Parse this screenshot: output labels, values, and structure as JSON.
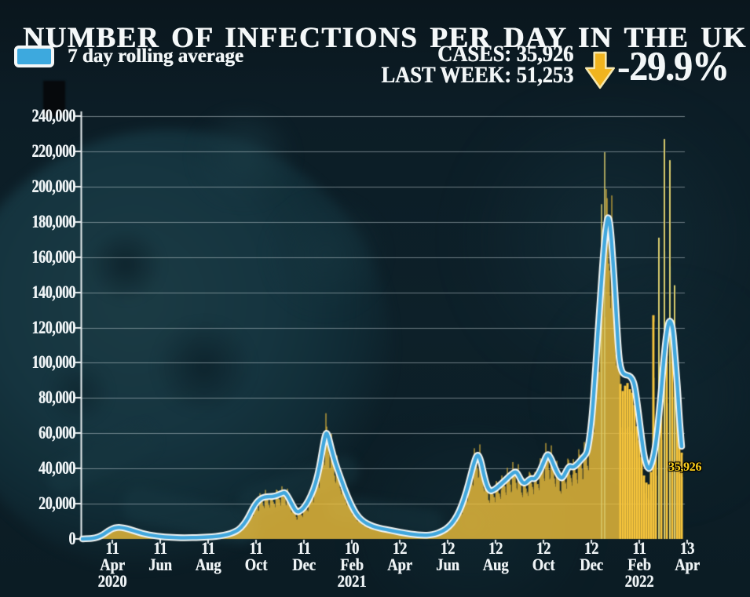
{
  "header": {
    "title": "NUMBER OF INFECTIONS PER DAY IN THE UK"
  },
  "legend": {
    "label": "7 day rolling average",
    "swatch_color": "#3da9de"
  },
  "stats": {
    "cases_label": "CASES:",
    "cases_value": "35,926",
    "cases_line": "CASES: 35,926",
    "last_week_label": "LAST WEEK:",
    "last_week_value": "51,253",
    "last_week_line": "LAST WEEK: 51,253",
    "change": "-29.9%",
    "arrow_color": "#f0b41f"
  },
  "chart_data": {
    "type": "bar+line",
    "series_name": "7 day rolling average",
    "ylim": [
      0,
      240000
    ],
    "grid": true,
    "y_ticks": [
      {
        "value": 0,
        "label": "0"
      },
      {
        "value": 20000,
        "label": "20,000"
      },
      {
        "value": 40000,
        "label": "40,000"
      },
      {
        "value": 60000,
        "label": "60,000"
      },
      {
        "value": 80000,
        "label": "80,000"
      },
      {
        "value": 100000,
        "label": "100,000"
      },
      {
        "value": 120000,
        "label": "120,000"
      },
      {
        "value": 140000,
        "label": "140,000"
      },
      {
        "value": 160000,
        "label": "160,000"
      },
      {
        "value": 180000,
        "label": "180,000"
      },
      {
        "value": 200000,
        "label": "200,000"
      },
      {
        "value": 220000,
        "label": "220,000"
      },
      {
        "value": 240000,
        "label": "240,000"
      }
    ],
    "x_ticks": [
      {
        "day": 38,
        "lines": [
          "11",
          "Apr",
          "2020"
        ]
      },
      {
        "day": 99,
        "lines": [
          "11",
          "Jun"
        ]
      },
      {
        "day": 160,
        "lines": [
          "11",
          "Aug"
        ]
      },
      {
        "day": 221,
        "lines": [
          "11",
          "Oct"
        ]
      },
      {
        "day": 282,
        "lines": [
          "11",
          "Dec"
        ]
      },
      {
        "day": 343,
        "lines": [
          "10",
          "Feb",
          "2021"
        ]
      },
      {
        "day": 404,
        "lines": [
          "12",
          "Apr"
        ]
      },
      {
        "day": 465,
        "lines": [
          "12",
          "Jun"
        ]
      },
      {
        "day": 526,
        "lines": [
          "12",
          "Aug"
        ]
      },
      {
        "day": 587,
        "lines": [
          "12",
          "Oct"
        ]
      },
      {
        "day": 648,
        "lines": [
          "12",
          "Dec"
        ]
      },
      {
        "day": 709,
        "lines": [
          "11",
          "Feb",
          "2022"
        ]
      },
      {
        "day": 770,
        "lines": [
          "13",
          "Apr"
        ]
      }
    ],
    "line_points": [
      [
        0,
        50
      ],
      [
        8,
        150
      ],
      [
        16,
        500
      ],
      [
        24,
        1800
      ],
      [
        30,
        3600
      ],
      [
        36,
        5400
      ],
      [
        41,
        6300
      ],
      [
        47,
        6600
      ],
      [
        53,
        6200
      ],
      [
        60,
        5400
      ],
      [
        68,
        4300
      ],
      [
        76,
        3200
      ],
      [
        85,
        2300
      ],
      [
        95,
        1600
      ],
      [
        105,
        1100
      ],
      [
        115,
        850
      ],
      [
        125,
        700
      ],
      [
        135,
        700
      ],
      [
        145,
        800
      ],
      [
        155,
        950
      ],
      [
        165,
        1200
      ],
      [
        175,
        1700
      ],
      [
        185,
        2600
      ],
      [
        192,
        3600
      ],
      [
        199,
        5200
      ],
      [
        205,
        8000
      ],
      [
        211,
        12000
      ],
      [
        217,
        17500
      ],
      [
        223,
        21500
      ],
      [
        229,
        23500
      ],
      [
        235,
        24000
      ],
      [
        241,
        24000
      ],
      [
        247,
        24500
      ],
      [
        253,
        25800
      ],
      [
        258,
        26500
      ],
      [
        263,
        23000
      ],
      [
        268,
        18500
      ],
      [
        273,
        15000
      ],
      [
        279,
        16200
      ],
      [
        285,
        19500
      ],
      [
        291,
        24500
      ],
      [
        297,
        31500
      ],
      [
        302,
        41000
      ],
      [
        306,
        52000
      ],
      [
        310,
        61000
      ],
      [
        313,
        58500
      ],
      [
        317,
        51000
      ],
      [
        322,
        43000
      ],
      [
        328,
        35500
      ],
      [
        334,
        28000
      ],
      [
        340,
        21500
      ],
      [
        346,
        16000
      ],
      [
        352,
        12200
      ],
      [
        359,
        9500
      ],
      [
        366,
        7800
      ],
      [
        374,
        6600
      ],
      [
        382,
        5800
      ],
      [
        391,
        5000
      ],
      [
        400,
        4200
      ],
      [
        409,
        3400
      ],
      [
        418,
        2800
      ],
      [
        427,
        2300
      ],
      [
        435,
        2100
      ],
      [
        442,
        2200
      ],
      [
        449,
        2800
      ],
      [
        456,
        3900
      ],
      [
        463,
        5600
      ],
      [
        470,
        8500
      ],
      [
        477,
        13000
      ],
      [
        483,
        19000
      ],
      [
        489,
        27000
      ],
      [
        494,
        35500
      ],
      [
        499,
        44000
      ],
      [
        503,
        48500
      ],
      [
        507,
        45000
      ],
      [
        511,
        36500
      ],
      [
        515,
        30000
      ],
      [
        519,
        27000
      ],
      [
        524,
        27800
      ],
      [
        529,
        29500
      ],
      [
        535,
        32000
      ],
      [
        541,
        34500
      ],
      [
        547,
        37000
      ],
      [
        552,
        38500
      ],
      [
        556,
        35500
      ],
      [
        560,
        32000
      ],
      [
        564,
        31500
      ],
      [
        568,
        33500
      ],
      [
        572,
        34500
      ],
      [
        576,
        34000
      ],
      [
        580,
        36500
      ],
      [
        584,
        40000
      ],
      [
        588,
        44500
      ],
      [
        592,
        48500
      ],
      [
        596,
        46500
      ],
      [
        601,
        41000
      ],
      [
        606,
        36000
      ],
      [
        611,
        34000
      ],
      [
        616,
        38500
      ],
      [
        620,
        41500
      ],
      [
        625,
        40500
      ],
      [
        630,
        42500
      ],
      [
        635,
        45000
      ],
      [
        638,
        46500
      ],
      [
        641,
        48000
      ],
      [
        643,
        50000
      ],
      [
        646,
        58000
      ],
      [
        649,
        70000
      ],
      [
        652,
        88000
      ],
      [
        655,
        108000
      ],
      [
        658,
        128000
      ],
      [
        661,
        147000
      ],
      [
        663,
        160000
      ],
      [
        665,
        170000
      ],
      [
        667,
        178000
      ],
      [
        669,
        183000
      ],
      [
        671,
        181000
      ],
      [
        673,
        173000
      ],
      [
        675,
        161000
      ],
      [
        677,
        148000
      ],
      [
        679,
        133000
      ],
      [
        681,
        117000
      ],
      [
        683,
        104000
      ],
      [
        685,
        97500
      ],
      [
        688,
        94000
      ],
      [
        692,
        93000
      ],
      [
        696,
        92800
      ],
      [
        700,
        91000
      ],
      [
        703,
        87500
      ],
      [
        706,
        78500
      ],
      [
        709,
        68000
      ],
      [
        712,
        57000
      ],
      [
        715,
        47500
      ],
      [
        718,
        42000
      ],
      [
        720,
        40200
      ],
      [
        722,
        39800
      ],
      [
        725,
        43000
      ],
      [
        728,
        48500
      ],
      [
        731,
        57000
      ],
      [
        734,
        70000
      ],
      [
        737,
        84000
      ],
      [
        740,
        101000
      ],
      [
        743,
        114000
      ],
      [
        746,
        122500
      ],
      [
        748,
        124000
      ],
      [
        750,
        122500
      ],
      [
        752,
        118000
      ],
      [
        754,
        107000
      ],
      [
        756,
        95500
      ],
      [
        758,
        84000
      ],
      [
        760,
        69000
      ],
      [
        762,
        57500
      ],
      [
        763,
        52500
      ]
    ],
    "bars": {
      "color": "#f8c63c",
      "spike_color": "#d9cc6e",
      "weekday_profile": [
        0.78,
        0.97,
        1.16,
        1.04,
        1.0,
        0.93,
        0.84
      ],
      "spikes": [
        [
          661,
          190000
        ],
        [
          665,
          219500
        ]
      ],
      "sparse_from": 685,
      "sparse_bars": [
        [
          685,
          88000
        ],
        [
          688,
          84000
        ],
        [
          691,
          87000
        ],
        [
          694,
          88500
        ],
        [
          697,
          85000
        ],
        [
          700,
          83000
        ],
        [
          703,
          76000
        ],
        [
          706,
          64000
        ],
        [
          709,
          56000
        ],
        [
          712,
          46500
        ],
        [
          715,
          36000
        ],
        [
          718,
          32000
        ],
        [
          721,
          31000
        ],
        [
          724,
          38000
        ],
        [
          727,
          127000
        ],
        [
          730,
          50000
        ],
        [
          734,
          171000
        ],
        [
          737,
          78000
        ],
        [
          741,
          227000
        ],
        [
          744,
          107000
        ],
        [
          748,
          215000
        ],
        [
          751,
          112000
        ],
        [
          754,
          144000
        ],
        [
          757,
          91000
        ],
        [
          760,
          62000
        ],
        [
          763,
          49000
        ]
      ]
    },
    "annotation": {
      "day": 741,
      "dx": 5,
      "value": 40000,
      "text": "35,926",
      "color": "#ffd21a"
    },
    "colors": {
      "background": "#0c1e26",
      "grid": "rgba(205,216,222,0.5)",
      "axis": "#e9eff1",
      "line": "#41a7dd",
      "line_casing": "#f3f6f4"
    }
  }
}
